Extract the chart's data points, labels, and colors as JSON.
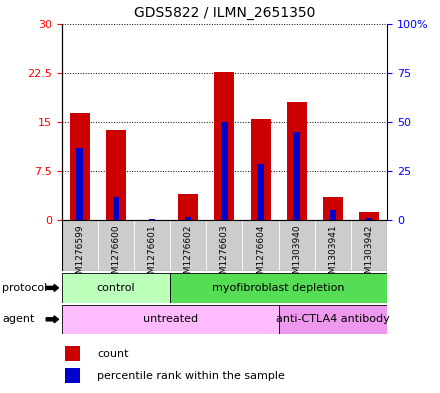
{
  "title": "GDS5822 / ILMN_2651350",
  "samples": [
    "GSM1276599",
    "GSM1276600",
    "GSM1276601",
    "GSM1276602",
    "GSM1276603",
    "GSM1276604",
    "GSM1303940",
    "GSM1303941",
    "GSM1303942"
  ],
  "counts": [
    16.3,
    13.8,
    0.05,
    4.0,
    22.6,
    15.5,
    18.0,
    3.5,
    1.2
  ],
  "percentiles": [
    36.7,
    11.7,
    0.67,
    1.67,
    50.0,
    28.3,
    45.0,
    5.0,
    1.0
  ],
  "ylim_left": [
    0,
    30
  ],
  "ylim_right": [
    0,
    100
  ],
  "yticks_left": [
    0,
    7.5,
    15,
    22.5,
    30
  ],
  "yticks_left_labels": [
    "0",
    "7.5",
    "15",
    "22.5",
    "30"
  ],
  "yticks_right": [
    0,
    25,
    50,
    75,
    100
  ],
  "yticks_right_labels": [
    "0",
    "25",
    "50",
    "75",
    "100%"
  ],
  "bar_color": "#cc0000",
  "percentile_color": "#0000cc",
  "bar_width": 0.55,
  "percentile_bar_width": 0.18,
  "protocol_groups": [
    {
      "label": "control",
      "start": 0,
      "end": 3,
      "color": "#bbffbb"
    },
    {
      "label": "myofibroblast depletion",
      "start": 3,
      "end": 9,
      "color": "#55dd55"
    }
  ],
  "agent_groups": [
    {
      "label": "untreated",
      "start": 0,
      "end": 6,
      "color": "#ffbbff"
    },
    {
      "label": "anti-CTLA4 antibody",
      "start": 6,
      "end": 9,
      "color": "#ee99ee"
    }
  ],
  "legend_count_label": "count",
  "legend_percentile_label": "percentile rank within the sample",
  "protocol_label": "protocol",
  "agent_label": "agent",
  "grid_color": "black",
  "tick_bg_color": "#cccccc",
  "fig_width": 4.4,
  "fig_height": 3.93,
  "dpi": 100
}
